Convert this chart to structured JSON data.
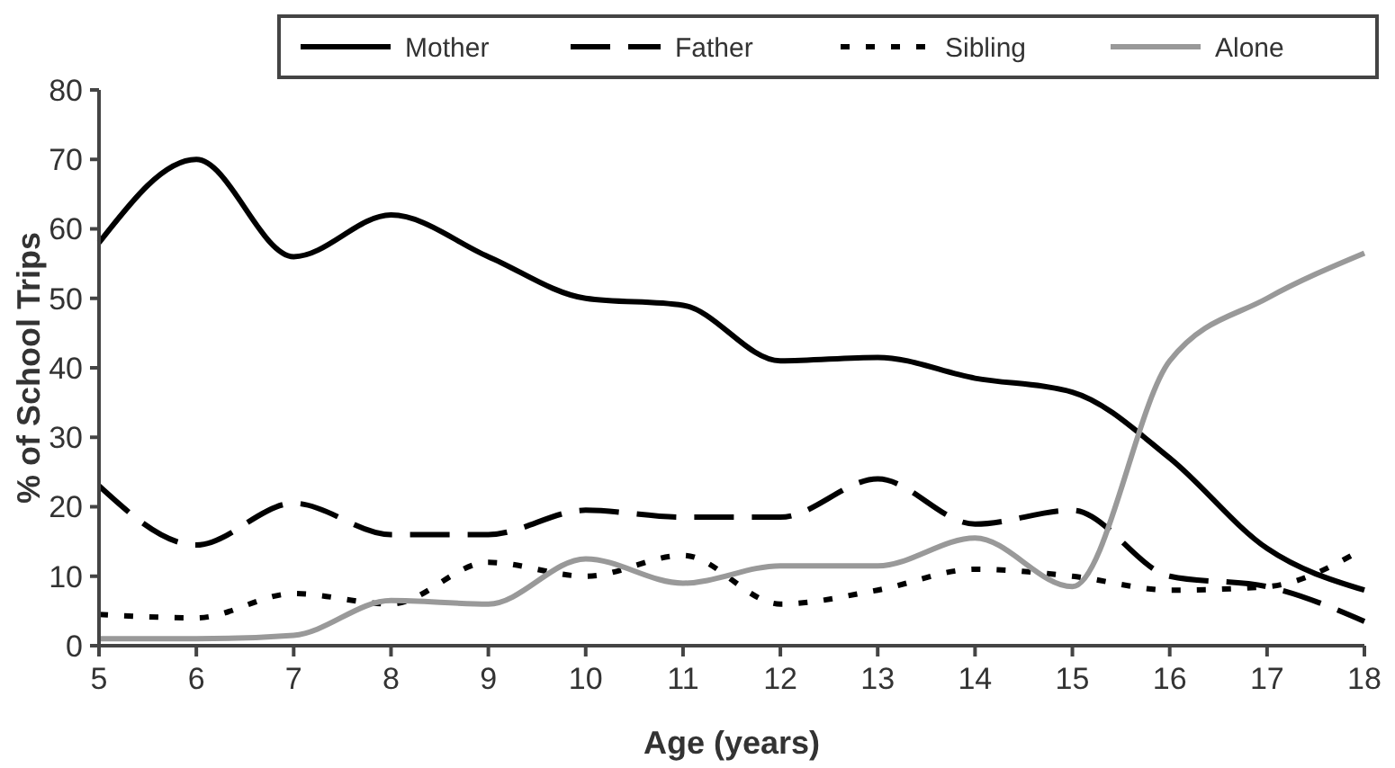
{
  "chart_data": {
    "type": "line",
    "xlabel": "Age (years)",
    "ylabel": "% of School Trips",
    "x": [
      5,
      6,
      7,
      8,
      9,
      10,
      11,
      12,
      13,
      14,
      15,
      16,
      17,
      18
    ],
    "xlim": [
      5,
      18
    ],
    "xticks": [
      5,
      6,
      7,
      8,
      9,
      10,
      11,
      12,
      13,
      14,
      15,
      16,
      17,
      18
    ],
    "ylim": [
      0,
      80
    ],
    "yticks": [
      0,
      10,
      20,
      30,
      40,
      50,
      60,
      70,
      80
    ],
    "grid": false,
    "legend": "top",
    "marker": "none",
    "series": [
      {
        "name": "Mother",
        "color": "#000000",
        "line_style": "solid",
        "values": [
          58,
          70,
          56,
          62,
          56,
          50,
          49,
          41,
          41.5,
          38.5,
          36.5,
          27,
          14,
          8
        ]
      },
      {
        "name": "Father",
        "color": "#000000",
        "line_style": "dashed",
        "values": [
          23,
          14.5,
          20.5,
          16,
          16,
          19.5,
          18.5,
          18.5,
          24,
          17.5,
          19.5,
          10,
          8.5,
          3.5
        ]
      },
      {
        "name": "Sibling",
        "color": "#000000",
        "line_style": "dotted",
        "values": [
          4.5,
          4,
          7.5,
          6,
          12,
          10,
          13,
          6,
          8,
          11,
          10,
          8,
          8.5,
          14
        ]
      },
      {
        "name": "Alone",
        "color": "#999999",
        "line_style": "solid",
        "values": [
          1,
          1,
          1.5,
          6.5,
          6,
          12.5,
          9,
          11.5,
          11.5,
          15.5,
          8.5,
          41,
          50,
          56.5
        ]
      }
    ]
  }
}
